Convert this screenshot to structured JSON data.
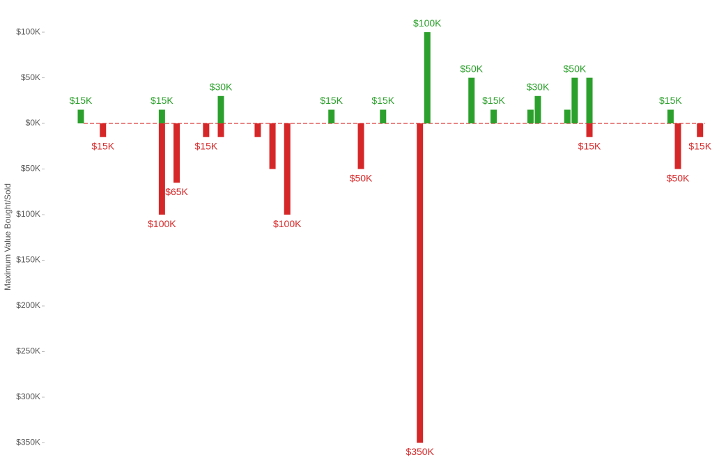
{
  "chart_data": {
    "type": "bar",
    "y_label": "Maximum Value Bought/Sold",
    "categories": [
      null,
      null,
      null,
      null,
      null,
      null,
      null,
      null,
      null,
      null,
      null,
      null,
      null,
      null,
      null,
      null,
      null,
      null,
      null,
      null,
      null,
      null,
      null,
      null,
      null,
      null,
      null,
      null,
      null,
      null,
      null,
      null,
      null,
      null,
      null,
      null,
      null,
      null,
      null,
      null,
      null,
      null,
      null,
      null,
      null,
      null,
      null,
      null,
      null,
      null,
      null,
      null,
      null,
      null,
      null,
      null,
      null,
      null,
      null,
      null,
      null,
      null,
      null,
      null,
      null,
      null,
      null,
      null,
      null,
      null,
      null,
      null,
      null,
      null,
      null,
      null,
      null,
      null,
      null,
      null,
      null,
      null,
      null,
      null,
      null
    ],
    "series": [
      {
        "color": "#2ca02c",
        "values": [
          15000,
          null,
          null,
          null,
          null,
          null,
          null,
          null,
          null,
          null,
          null,
          15000,
          null,
          null,
          null,
          null,
          null,
          null,
          null,
          30000,
          null,
          null,
          null,
          null,
          null,
          null,
          null,
          null,
          null,
          null,
          null,
          null,
          null,
          null,
          15000,
          null,
          null,
          null,
          null,
          null,
          null,
          15000,
          null,
          null,
          null,
          null,
          null,
          100000,
          null,
          null,
          null,
          null,
          null,
          50000,
          null,
          null,
          15000,
          null,
          null,
          null,
          null,
          15000,
          30000,
          null,
          null,
          null,
          15000,
          50000,
          null,
          50000,
          null,
          null,
          null,
          null,
          null,
          null,
          null,
          null,
          null,
          null,
          15000,
          null,
          null,
          null,
          null
        ],
        "value_labels": [
          "$15K",
          null,
          null,
          null,
          null,
          null,
          null,
          null,
          null,
          null,
          null,
          "$15K",
          null,
          null,
          null,
          null,
          null,
          null,
          null,
          "$30K",
          null,
          null,
          null,
          null,
          null,
          null,
          null,
          null,
          null,
          null,
          null,
          null,
          null,
          null,
          "$15K",
          null,
          null,
          null,
          null,
          null,
          null,
          "$15K",
          null,
          null,
          null,
          null,
          null,
          "$100K",
          null,
          null,
          null,
          null,
          null,
          "$50K",
          null,
          null,
          "$15K",
          null,
          null,
          null,
          null,
          null,
          "$30K",
          null,
          null,
          null,
          null,
          "$50K",
          null,
          null,
          null,
          null,
          null,
          null,
          null,
          null,
          null,
          null,
          null,
          null,
          "$15K",
          null,
          null,
          null,
          null
        ]
      },
      {
        "color": "#d62728",
        "values": [
          null,
          null,
          null,
          -15000,
          null,
          null,
          null,
          null,
          null,
          null,
          null,
          -100000,
          null,
          -65000,
          null,
          null,
          null,
          -15000,
          null,
          -15000,
          null,
          null,
          null,
          null,
          -15000,
          null,
          -50000,
          null,
          -100000,
          null,
          null,
          null,
          null,
          null,
          null,
          null,
          null,
          null,
          -50000,
          null,
          null,
          null,
          null,
          null,
          null,
          null,
          -350000,
          null,
          null,
          null,
          null,
          null,
          null,
          null,
          null,
          null,
          null,
          null,
          null,
          null,
          null,
          null,
          null,
          null,
          null,
          null,
          null,
          null,
          null,
          -15000,
          null,
          null,
          null,
          null,
          null,
          null,
          null,
          null,
          null,
          null,
          null,
          -50000,
          null,
          null,
          -15000
        ],
        "value_labels": [
          null,
          null,
          null,
          "$15K",
          null,
          null,
          null,
          null,
          null,
          null,
          null,
          "$100K",
          null,
          "$65K",
          null,
          null,
          null,
          "$15K",
          null,
          null,
          null,
          null,
          null,
          null,
          null,
          null,
          null,
          null,
          "$100K",
          null,
          null,
          null,
          null,
          null,
          null,
          null,
          null,
          null,
          "$50K",
          null,
          null,
          null,
          null,
          null,
          null,
          null,
          "$350K",
          null,
          null,
          null,
          null,
          null,
          null,
          null,
          null,
          null,
          null,
          null,
          null,
          null,
          null,
          null,
          null,
          null,
          null,
          null,
          null,
          null,
          null,
          "$15K",
          null,
          null,
          null,
          null,
          null,
          null,
          null,
          null,
          null,
          null,
          null,
          "$50K",
          null,
          null,
          "$15K"
        ]
      }
    ],
    "ylim": [
      -360000,
      110000
    ],
    "yticks": [
      {
        "value": 100000,
        "label": "$100K"
      },
      {
        "value": 50000,
        "label": "$50K"
      },
      {
        "value": 0,
        "label": "$0K"
      },
      {
        "value": -50000,
        "label": "$50K"
      },
      {
        "value": -100000,
        "label": "$100K"
      },
      {
        "value": -150000,
        "label": "$150K"
      },
      {
        "value": -200000,
        "label": "$200K"
      },
      {
        "value": -250000,
        "label": "$250K"
      },
      {
        "value": -300000,
        "label": "$300K"
      },
      {
        "value": -350000,
        "label": "$350K"
      }
    ],
    "zero_line_color": "#d62728"
  }
}
